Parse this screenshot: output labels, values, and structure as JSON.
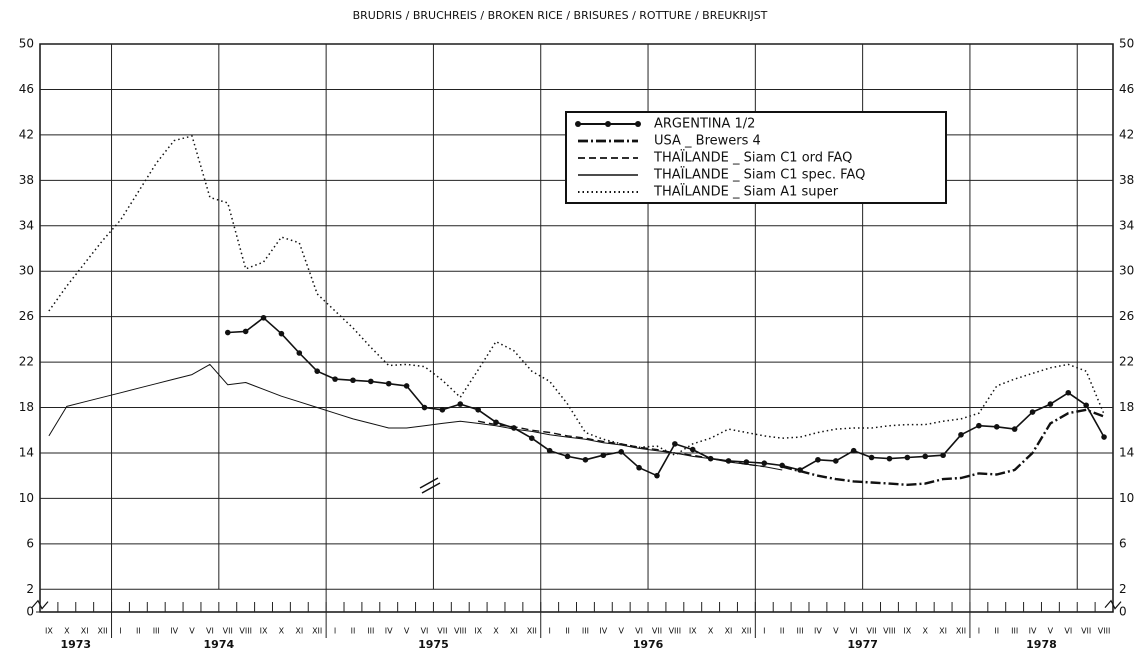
{
  "chart_data": {
    "type": "line",
    "title": "BRUDRIS / BRUCHREIS / BROKEN RICE / BRISURES / ROTTURE / BREUKRIJST",
    "categories": [
      "IX",
      "X",
      "XI",
      "XII",
      "I",
      "II",
      "III",
      "IV",
      "V",
      "VI",
      "VII",
      "VIII",
      "IX",
      "X",
      "XI",
      "XII",
      "I",
      "II",
      "III",
      "IV",
      "V",
      "VI",
      "VII",
      "VIII",
      "IX",
      "X",
      "XI",
      "XII",
      "I",
      "II",
      "III",
      "IV",
      "V",
      "VI",
      "VII",
      "VIII",
      "IX",
      "X",
      "XI",
      "XII",
      "I",
      "II",
      "III",
      "IV",
      "V",
      "VI",
      "VII",
      "VIII",
      "IX",
      "X",
      "XI",
      "XII",
      "I",
      "II",
      "III",
      "IV",
      "V",
      "VI",
      "VII",
      "VIII"
    ],
    "years": [
      "1973",
      "1974",
      "1975",
      "1976",
      "1977",
      "1978"
    ],
    "ylim": [
      0,
      50
    ],
    "yticks": [
      0,
      2,
      6,
      10,
      14,
      18,
      22,
      26,
      30,
      34,
      38,
      42,
      46,
      50
    ],
    "grid": true,
    "series": [
      {
        "name": "ARGENTINA 1/2",
        "color": "#111111",
        "style": "solid-dots",
        "values": [
          null,
          null,
          null,
          null,
          null,
          null,
          null,
          null,
          null,
          null,
          24.6,
          24.7,
          25.9,
          24.5,
          22.8,
          21.2,
          20.5,
          20.4,
          20.3,
          20.1,
          19.9,
          18.0,
          17.8,
          18.3,
          17.8,
          16.7,
          16.2,
          15.3,
          14.2,
          13.7,
          13.4,
          13.8,
          14.1,
          12.7,
          12.0,
          14.8,
          14.3,
          13.5,
          13.3,
          13.2,
          13.1,
          12.9,
          12.5,
          13.4,
          13.3,
          14.2,
          13.6,
          13.5,
          13.6,
          13.7,
          13.8,
          15.6,
          16.4,
          16.3,
          16.1,
          17.6,
          18.3,
          19.3,
          18.2,
          15.4
        ]
      },
      {
        "name": "USA _ Brewers 4",
        "color": "#111111",
        "style": "dashdot",
        "values": [
          null,
          null,
          null,
          null,
          null,
          null,
          null,
          null,
          null,
          null,
          null,
          null,
          null,
          null,
          null,
          null,
          null,
          null,
          null,
          null,
          null,
          null,
          null,
          null,
          null,
          null,
          null,
          null,
          null,
          null,
          null,
          null,
          null,
          null,
          null,
          null,
          null,
          null,
          null,
          null,
          null,
          12.8,
          12.4,
          12.0,
          11.7,
          11.5,
          11.4,
          11.3,
          11.2,
          11.3,
          11.7,
          11.8,
          12.2,
          12.1,
          12.5,
          14.0,
          16.6,
          17.5,
          17.8,
          17.2
        ]
      },
      {
        "name": "THAÏLANDE _ Siam C1 ord FAQ",
        "color": "#111111",
        "style": "dashed",
        "values": [
          null,
          null,
          null,
          null,
          null,
          null,
          null,
          null,
          null,
          null,
          null,
          null,
          null,
          null,
          null,
          null,
          null,
          null,
          null,
          null,
          null,
          null,
          null,
          null,
          16.8,
          16.5,
          16.3,
          16.0,
          15.8,
          15.5,
          15.3,
          15.0,
          14.8,
          14.5,
          14.3,
          14.0,
          13.8,
          13.5,
          13.3,
          13.0,
          12.8,
          null,
          null,
          null,
          null,
          null,
          null,
          null,
          null,
          null,
          null,
          null,
          null,
          null,
          null,
          null,
          null,
          null,
          null,
          null
        ]
      },
      {
        "name": "THAÏLANDE _ Siam C1 spec. FAQ",
        "color": "#111111",
        "style": "solid",
        "values": [
          15.5,
          18.1,
          18.5,
          18.9,
          19.3,
          19.7,
          20.1,
          20.5,
          20.9,
          21.8,
          20.0,
          20.2,
          19.6,
          19.0,
          18.5,
          18.0,
          17.5,
          17.0,
          16.6,
          16.2,
          16.2,
          16.4,
          16.6,
          16.8,
          16.6,
          16.4,
          16.1,
          15.9,
          15.6,
          15.4,
          15.2,
          14.9,
          14.7,
          14.4,
          14.2,
          14.0,
          13.7,
          13.5,
          13.2,
          13.0,
          12.8,
          12.5,
          null,
          null,
          null,
          null,
          null,
          null,
          null,
          null,
          null,
          null,
          null,
          null,
          null,
          null,
          null,
          null,
          null,
          null
        ]
      },
      {
        "name": "THAÏLANDE _ Siam A1 super",
        "color": "#111111",
        "style": "dotted",
        "values": [
          26.5,
          28.7,
          30.7,
          32.7,
          34.5,
          37.0,
          39.5,
          41.5,
          41.9,
          36.5,
          36.0,
          30.2,
          30.8,
          33.0,
          32.5,
          28.0,
          26.5,
          25.0,
          23.3,
          21.7,
          21.8,
          21.6,
          20.4,
          18.9,
          21.3,
          23.8,
          23.0,
          21.2,
          20.3,
          18.3,
          15.8,
          15.2,
          14.8,
          14.5,
          14.6,
          13.8,
          14.8,
          15.3,
          16.1,
          15.8,
          15.5,
          15.3,
          15.4,
          15.8,
          16.1,
          16.2,
          16.2,
          16.4,
          16.5,
          16.5,
          16.8,
          17.0,
          17.5,
          19.9,
          20.5,
          21.0,
          21.5,
          21.8,
          21.2,
          17.4
        ]
      }
    ]
  }
}
